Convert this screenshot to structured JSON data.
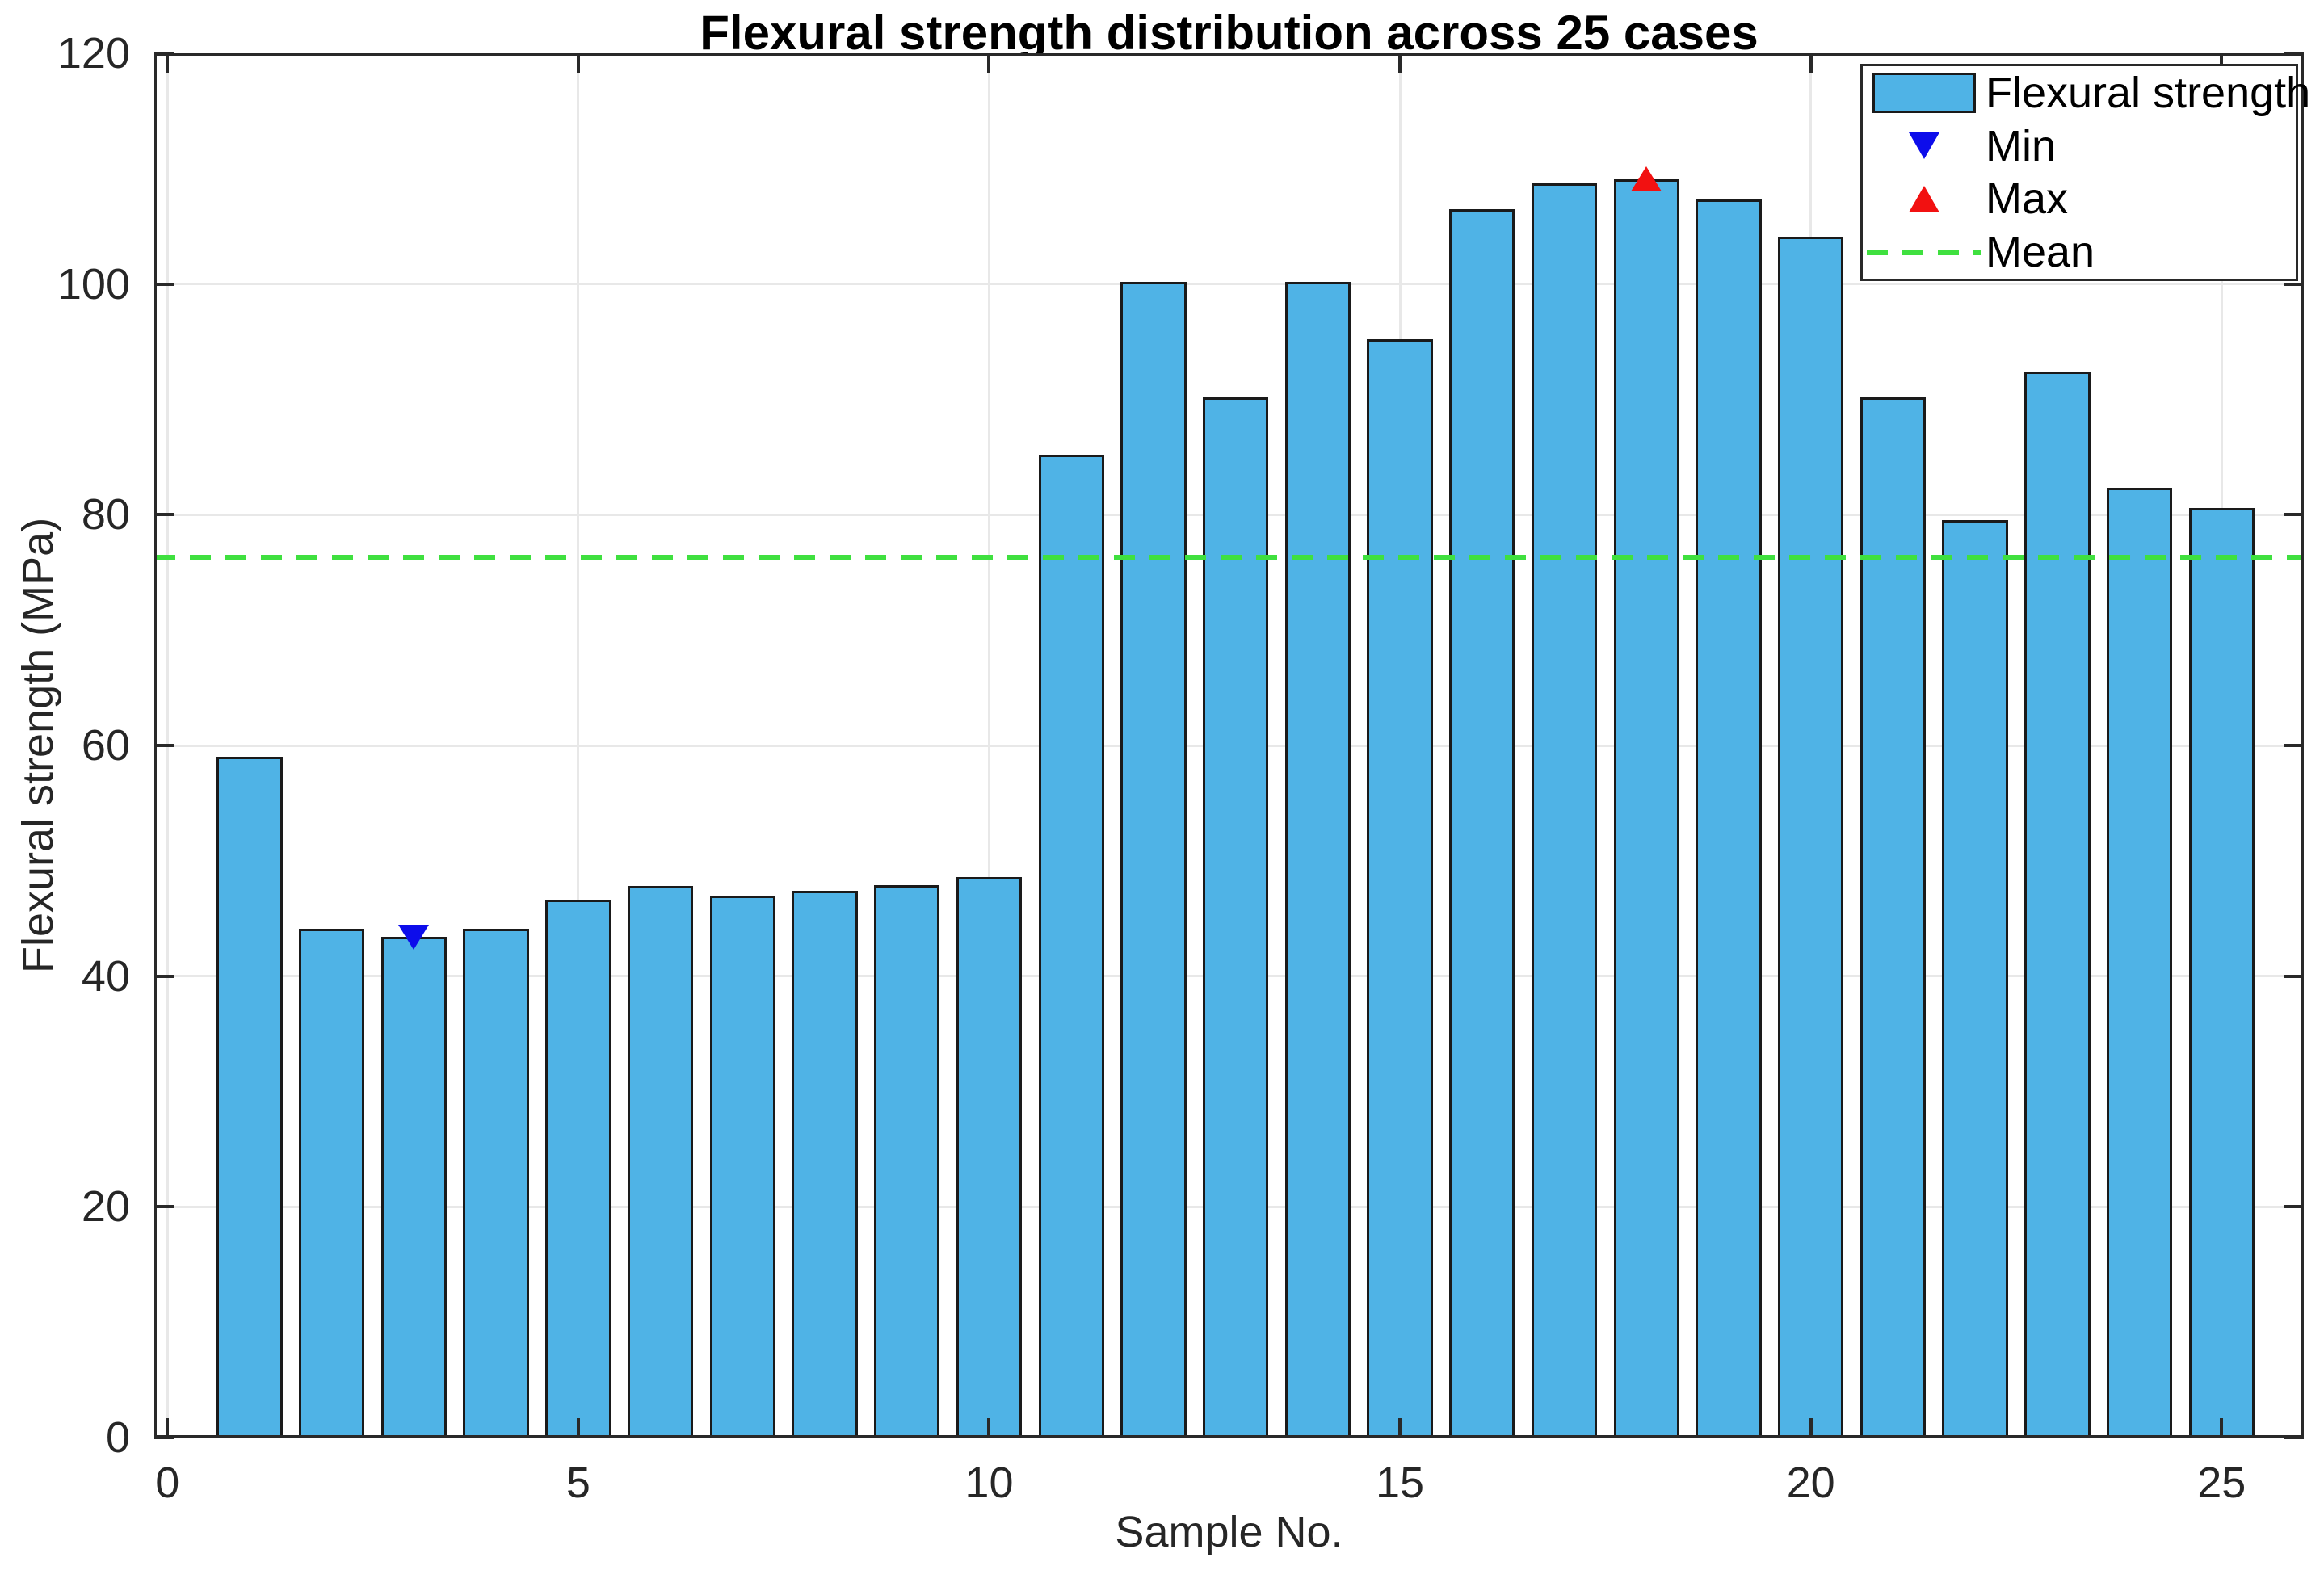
{
  "colors": {
    "background": "#FFFFFF",
    "bar_fill": "#4FB3E6",
    "bar_edge": "#1A1A1A",
    "min_marker": "#0D0DEB",
    "max_marker": "#F21111",
    "mean_line": "#3FE03F",
    "grid": "#E8E8E8",
    "axis": "#292929",
    "tick_text": "#262626",
    "title_text": "#000000"
  },
  "legend": {
    "items": [
      {
        "label": "Flexural strength",
        "swatch": "bar-patch"
      },
      {
        "label": "Min",
        "swatch": "triangle-down"
      },
      {
        "label": "Max",
        "swatch": "triangle-up"
      },
      {
        "label": "Mean",
        "swatch": "dashed-line"
      }
    ]
  },
  "chart_data": {
    "type": "bar",
    "title": "Flexural strength distribution across 25 cases",
    "xlabel": "Sample No.",
    "ylabel": "Flexural strength (MPa)",
    "series_label": "Flexural strength",
    "x": [
      1,
      2,
      3,
      4,
      5,
      6,
      7,
      8,
      9,
      10,
      11,
      12,
      13,
      14,
      15,
      16,
      17,
      18,
      19,
      20,
      21,
      22,
      23,
      24,
      25
    ],
    "values": [
      59.0,
      44.1,
      43.4,
      44.1,
      46.6,
      47.8,
      47.0,
      47.4,
      47.9,
      48.6,
      85.2,
      100.2,
      90.2,
      100.2,
      95.2,
      106.5,
      108.7,
      109.1,
      107.3,
      104.1,
      90.2,
      79.5,
      92.4,
      82.3,
      80.6
    ],
    "bar_width": 0.8,
    "xlim": [
      -0.16,
      26.0
    ],
    "ylim": [
      0,
      120
    ],
    "xticks": [
      0,
      5,
      10,
      15,
      20,
      25
    ],
    "yticks": [
      0,
      20,
      40,
      60,
      80,
      100,
      120
    ],
    "grid": true,
    "legend_position": "northeast",
    "mean_value": 76.3,
    "min": {
      "x": 3,
      "value": 43.4,
      "label": "Min"
    },
    "max": {
      "x": 18,
      "value": 109.1,
      "label": "Max"
    }
  }
}
